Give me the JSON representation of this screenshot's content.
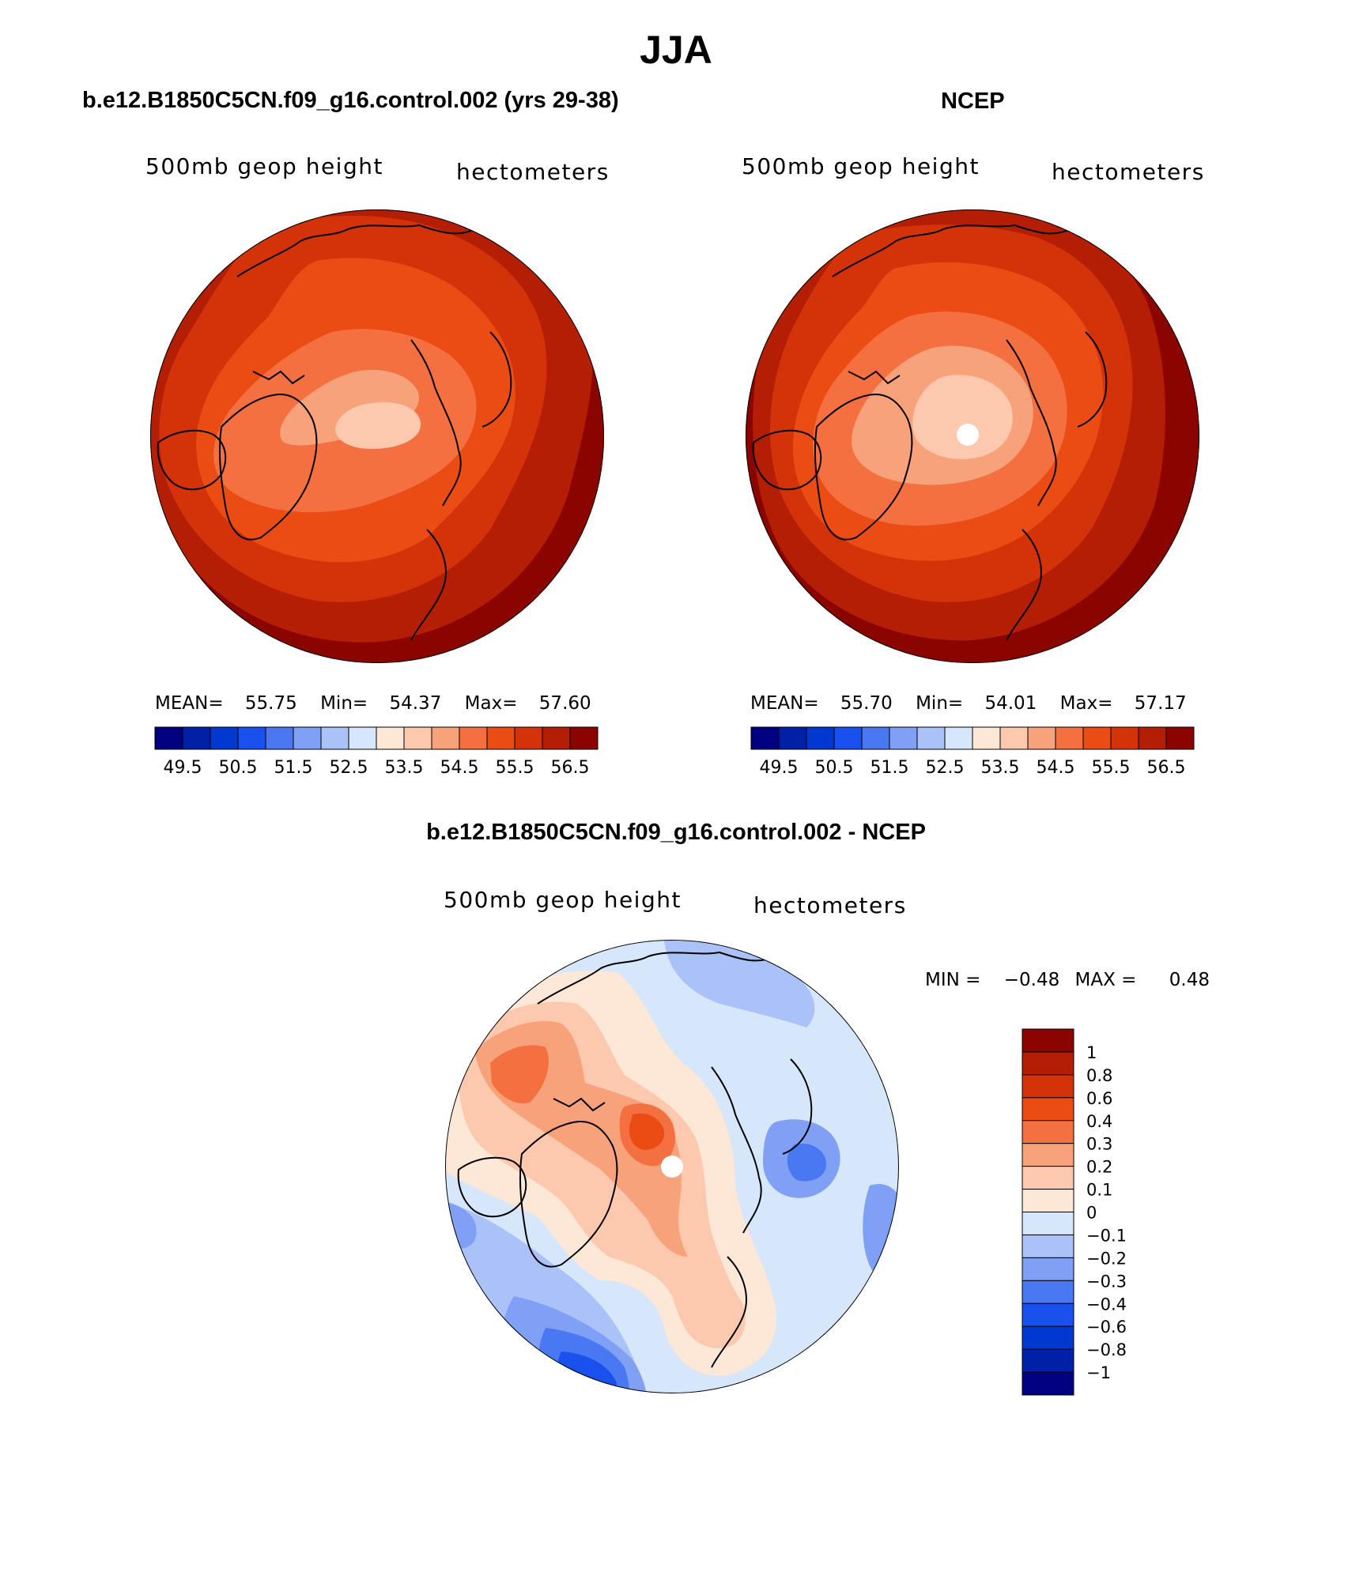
{
  "title": "JJA",
  "panels": [
    {
      "title": "b.e12.B1850C5CN.f09_g16.control.002 (yrs 29-38)",
      "field_label": "500mb geop height",
      "units_label": "hectometers",
      "stats": {
        "mean_label": "MEAN=",
        "mean": "55.75",
        "min_label": "Min=",
        "min": "54.37",
        "max_label": "Max=",
        "max": "57.60"
      }
    },
    {
      "title": "NCEP",
      "field_label": "500mb geop height",
      "units_label": "hectometers",
      "stats": {
        "mean_label": "MEAN=",
        "mean": "55.70",
        "min_label": "Min=",
        "min": "54.01",
        "max_label": "Max=",
        "max": "57.17"
      }
    },
    {
      "title": "b.e12.B1850C5CN.f09_g16.control.002 - NCEP",
      "field_label": "500mb geop height",
      "units_label": "hectometers",
      "stats": {
        "min_label": "MIN =",
        "min": "−0.48",
        "max_label": "MAX =",
        "max": "0.48"
      }
    }
  ],
  "colorbar_abs": {
    "colors": [
      "#000080",
      "#0020a8",
      "#0038d0",
      "#1a50ee",
      "#4a78f2",
      "#7fa0f5",
      "#aac2f8",
      "#d6e6fb",
      "#fde7d6",
      "#fcc9ae",
      "#f8a27c",
      "#f47040",
      "#ea4c14",
      "#d43208",
      "#b41e05",
      "#8a0400"
    ],
    "labels": [
      "49.5",
      "50.5",
      "51.5",
      "52.5",
      "53.5",
      "54.5",
      "55.5",
      "56.5"
    ]
  },
  "colorbar_diff": {
    "colors": [
      "#8a0400",
      "#b41e05",
      "#d43208",
      "#ea4c14",
      "#f47040",
      "#f8a27c",
      "#fcc9ae",
      "#fde7d6",
      "#d6e6fb",
      "#aac2f8",
      "#7fa0f5",
      "#4a78f2",
      "#1a50ee",
      "#0038d0",
      "#0020a8",
      "#000080"
    ],
    "labels": [
      "1",
      "0.8",
      "0.6",
      "0.4",
      "0.3",
      "0.2",
      "0.1",
      "0",
      "−0.1",
      "−0.2",
      "−0.3",
      "−0.4",
      "−0.6",
      "−0.8",
      "−1"
    ]
  },
  "chart_data": [
    {
      "type": "heatmap",
      "title": "b.e12.B1850C5CN.f09_g16.control.002 (yrs 29-38)",
      "projection": "north polar stereographic",
      "variable": "500mb geop height",
      "units": "hectometers",
      "contour_levels": [
        49.5,
        50,
        50.5,
        51,
        51.5,
        52,
        52.5,
        53,
        53.5,
        54,
        54.5,
        55,
        55.5,
        56,
        56.5
      ],
      "stats": {
        "mean": 55.75,
        "min": 54.37,
        "max": 57.6
      }
    },
    {
      "type": "heatmap",
      "title": "NCEP",
      "projection": "north polar stereographic",
      "variable": "500mb geop height",
      "units": "hectometers",
      "contour_levels": [
        49.5,
        50,
        50.5,
        51,
        51.5,
        52,
        52.5,
        53,
        53.5,
        54,
        54.5,
        55,
        55.5,
        56,
        56.5
      ],
      "stats": {
        "mean": 55.7,
        "min": 54.01,
        "max": 57.17
      }
    },
    {
      "type": "heatmap",
      "title": "b.e12.B1850C5CN.f09_g16.control.002 - NCEP",
      "projection": "north polar stereographic",
      "variable": "500mb geop height",
      "units": "hectometers",
      "contour_levels": [
        -1,
        -0.8,
        -0.6,
        -0.4,
        -0.3,
        -0.2,
        -0.1,
        0,
        0.1,
        0.2,
        0.3,
        0.4,
        0.6,
        0.8,
        1
      ],
      "stats": {
        "min": -0.48,
        "max": 0.48
      }
    }
  ]
}
